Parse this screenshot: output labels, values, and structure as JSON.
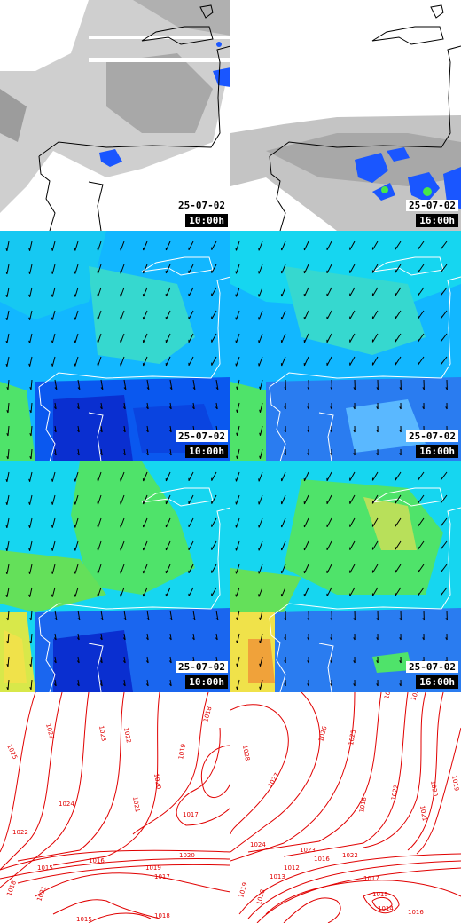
{
  "colors": {
    "coast": "#000000",
    "coast_wind": "#ffffff",
    "cloud_gray": "#b9b9b9",
    "rain_blue": "#1a56ff",
    "rain_green": "#46e84a",
    "wind_low": "#0a2fd0",
    "wind_mid": "#12b7ff",
    "wind_cyan": "#16e6ee",
    "wind_green": "#4fe36a",
    "wind_yellow": "#f0e24a",
    "wind_orange": "#f0a23a",
    "isobar": "#e00000",
    "arrow": "#000000"
  },
  "panels": [
    {
      "kind": "cloud-rain",
      "date": "25-07-02",
      "time": "10:00h"
    },
    {
      "kind": "cloud-rain",
      "date": "25-07-02",
      "time": "16:00h"
    },
    {
      "kind": "wind-10m",
      "date": "25-07-02",
      "time": "10:00h"
    },
    {
      "kind": "wind-10m",
      "date": "25-07-02",
      "time": "16:00h"
    },
    {
      "kind": "wind-gust",
      "date": "25-07-02",
      "time": "10:00h"
    },
    {
      "kind": "wind-gust",
      "date": "25-07-02",
      "time": "16:00h"
    },
    {
      "kind": "pressure",
      "isobar_labels": [
        "1025",
        "1023",
        "1022",
        "1024",
        "1023",
        "1022",
        "1021",
        "1020",
        "1019",
        "1018",
        "1017",
        "1016",
        "1015",
        "1020",
        "1019",
        "1018",
        "1021",
        "1017",
        "1018",
        "1015"
      ]
    },
    {
      "kind": "pressure",
      "isobar_labels": [
        "1028",
        "1027",
        "1026",
        "1025",
        "1024",
        "1023",
        "1022",
        "1021",
        "1020",
        "1019",
        "1018",
        "1017",
        "1016",
        "1015",
        "1014",
        "1013",
        "1012",
        "1024",
        "1023",
        "1022",
        "1019",
        "1018",
        "1016"
      ]
    }
  ]
}
